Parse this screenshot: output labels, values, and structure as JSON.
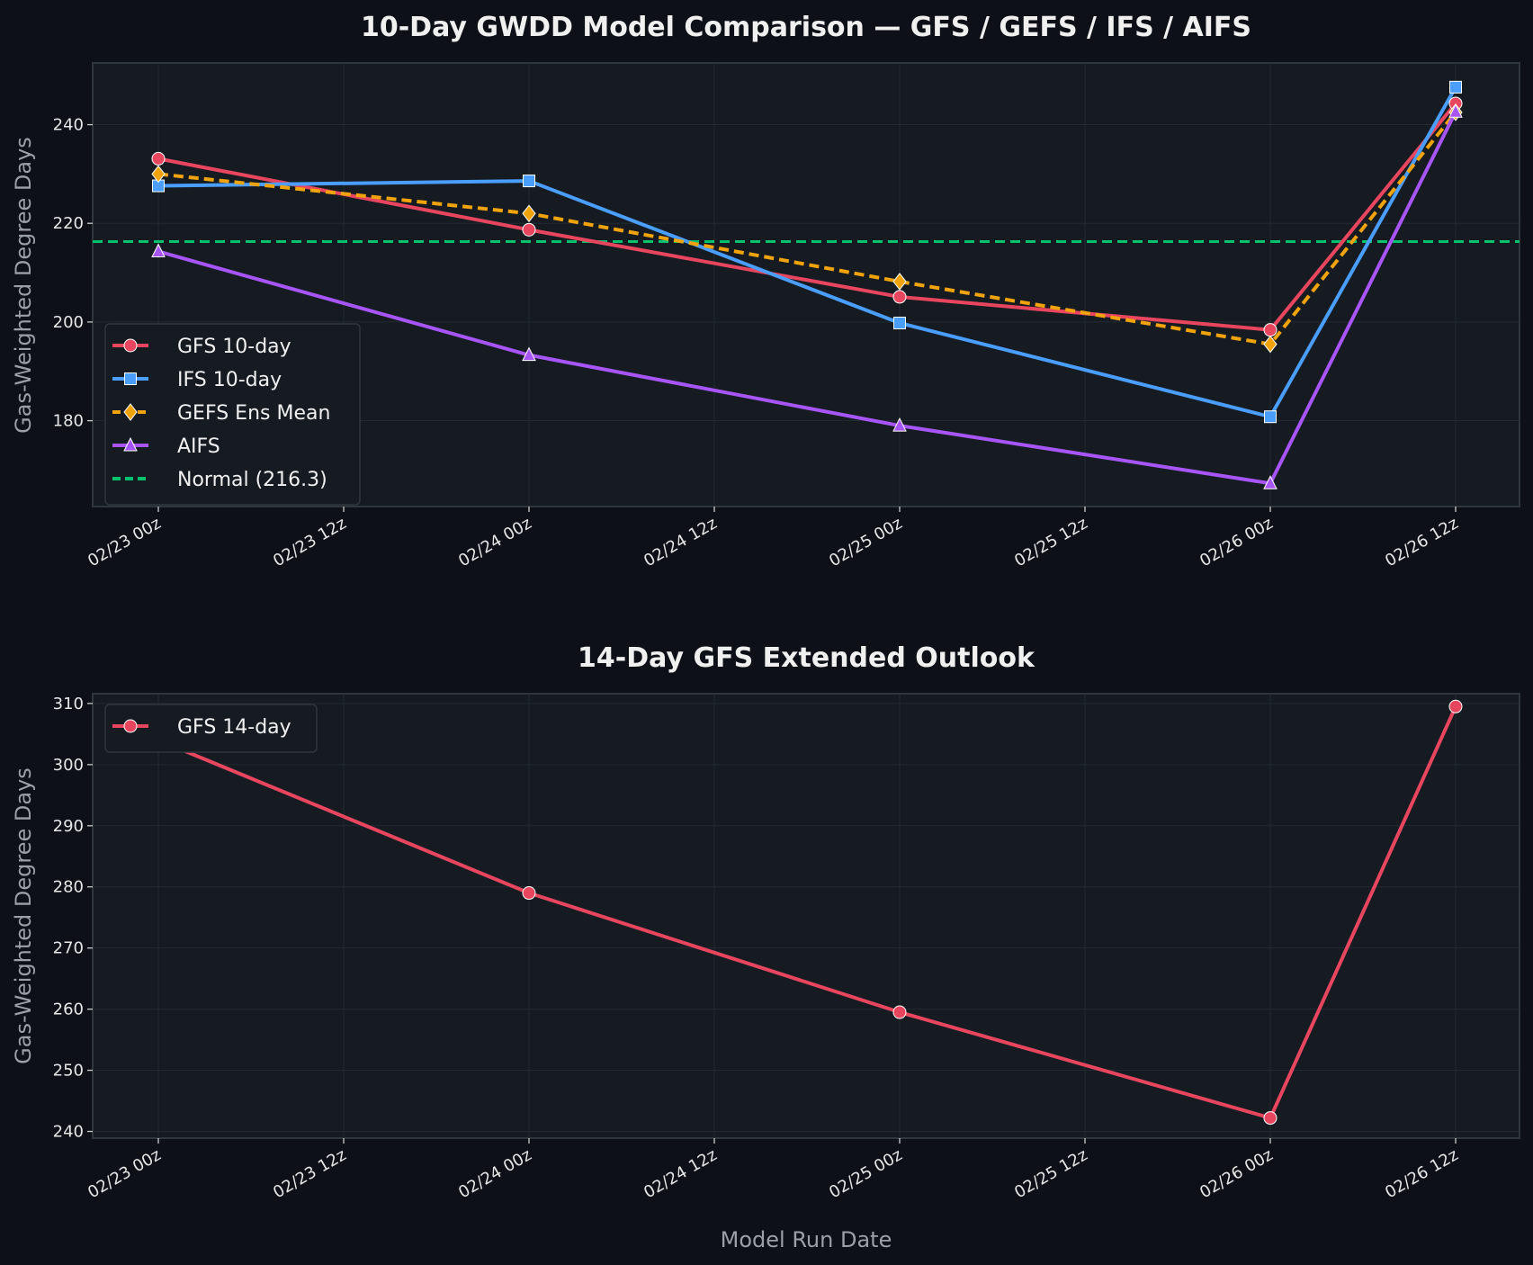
{
  "chart_data": [
    {
      "type": "line",
      "title": "10-Day GWDD Model Comparison — GFS / GEFS / IFS / AIFS",
      "xlabel": "",
      "ylabel": "Gas-Weighted Degree Days",
      "x": [
        "02/23 00z",
        "02/24 00z",
        "02/25 00z",
        "02/26 00z",
        "02/26 12z"
      ],
      "x_ticks": [
        "02/23 00z",
        "02/23 12z",
        "02/24 00z",
        "02/24 12z",
        "02/25 00z",
        "02/25 12z",
        "02/26 00z",
        "02/26 12z"
      ],
      "y_ticks": [
        180,
        200,
        220,
        240
      ],
      "ylim": [
        162.6,
        252.5
      ],
      "grid": true,
      "legend_position": "lower-left",
      "series": [
        {
          "name": "GFS 10-day",
          "color": "#e8465f",
          "marker": "circle",
          "dash": false,
          "values": [
            233.1,
            218.7,
            205.1,
            198.4,
            244.3
          ]
        },
        {
          "name": "IFS 10-day",
          "color": "#4a9eff",
          "marker": "square",
          "dash": false,
          "values": [
            227.6,
            228.6,
            199.8,
            180.8,
            247.6
          ]
        },
        {
          "name": "GEFS Ens Mean",
          "color": "#f0a30a",
          "marker": "diamond",
          "dash": true,
          "values": [
            230.0,
            222.0,
            208.2,
            195.5,
            242.5
          ]
        },
        {
          "name": "AIFS",
          "color": "#a855f7",
          "marker": "triangle",
          "dash": false,
          "values": [
            214.3,
            193.3,
            179.0,
            167.3,
            242.6
          ]
        }
      ],
      "reference_line": {
        "name": "Normal (216.3)",
        "value": 216.3,
        "color": "#00c16e"
      }
    },
    {
      "type": "line",
      "title": "14-Day GFS Extended Outlook",
      "xlabel": "Model Run Date",
      "ylabel": "Gas-Weighted Degree Days",
      "x": [
        "02/23 00z",
        "02/24 00z",
        "02/25 00z",
        "02/26 00z",
        "02/26 12z"
      ],
      "x_ticks": [
        "02/23 00z",
        "02/23 12z",
        "02/24 00z",
        "02/24 12z",
        "02/25 00z",
        "02/25 12z",
        "02/26 00z",
        "02/26 12z"
      ],
      "y_ticks": [
        240,
        250,
        260,
        270,
        280,
        290,
        300,
        310
      ],
      "ylim": [
        238.9,
        311.6
      ],
      "grid": true,
      "legend_position": "upper-left",
      "series": [
        {
          "name": "GFS 14-day",
          "color": "#e8465f",
          "marker": "circle",
          "dash": false,
          "values": [
            304.0,
            279.0,
            259.5,
            242.2,
            309.5
          ]
        }
      ]
    }
  ]
}
